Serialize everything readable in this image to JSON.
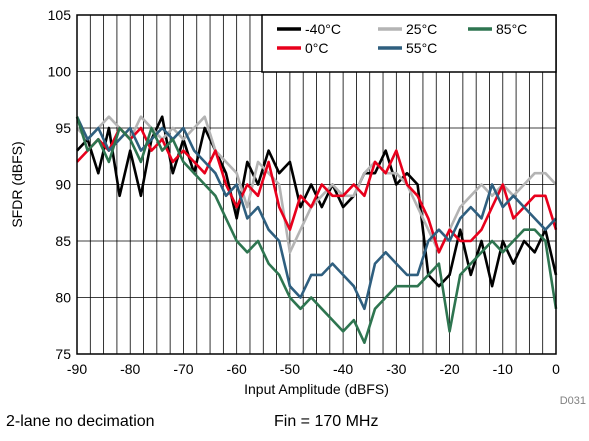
{
  "chart_data": {
    "type": "line",
    "xlabel": "Input Amplitude (dBFS)",
    "ylabel": "SFDR (dBFS)",
    "xlim": [
      -90,
      0
    ],
    "ylim": [
      75,
      105
    ],
    "xticks": [
      "-90",
      "-80",
      "-70",
      "-60",
      "-50",
      "-40",
      "-30",
      "-20",
      "-10",
      "0"
    ],
    "yticks": [
      "75",
      "80",
      "85",
      "90",
      "95",
      "100",
      "105"
    ],
    "grid": true,
    "legend_position": "top-right",
    "series": [
      {
        "name": "-40°C",
        "color": "#000000",
        "x": [
          -90,
          -88,
          -86,
          -84,
          -82,
          -80,
          -78,
          -76,
          -74,
          -72,
          -70,
          -68,
          -66,
          -64,
          -62,
          -60,
          -58,
          -56,
          -54,
          -52,
          -50,
          -48,
          -46,
          -44,
          -42,
          -40,
          -38,
          -36,
          -34,
          -32,
          -30,
          -28,
          -26,
          -24,
          -22,
          -20,
          -18,
          -16,
          -14,
          -12,
          -10,
          -8,
          -6,
          -4,
          -2,
          0
        ],
        "y": [
          93,
          94,
          91,
          95,
          89,
          93,
          89,
          94,
          96,
          91,
          94,
          91,
          95,
          93,
          91,
          87,
          92,
          90,
          93,
          91,
          92,
          88,
          90,
          88,
          90,
          88,
          89,
          91,
          91,
          93,
          90,
          91,
          90,
          82,
          81,
          82,
          86,
          82,
          85,
          81,
          85,
          83,
          85,
          84,
          86,
          82
        ]
      },
      {
        "name": "25°C",
        "color": "#b4b4b4",
        "x": [
          -90,
          -88,
          -86,
          -84,
          -82,
          -80,
          -78,
          -76,
          -74,
          -72,
          -70,
          -68,
          -66,
          -64,
          -62,
          -60,
          -58,
          -56,
          -54,
          -52,
          -50,
          -48,
          -46,
          -44,
          -42,
          -40,
          -38,
          -36,
          -34,
          -32,
          -30,
          -28,
          -26,
          -24,
          -22,
          -20,
          -18,
          -16,
          -14,
          -12,
          -10,
          -8,
          -6,
          -4,
          -2,
          0
        ],
        "y": [
          95,
          94,
          95,
          96,
          95,
          94,
          96,
          95,
          94,
          95,
          94,
          95,
          96,
          93,
          92,
          91,
          88,
          92,
          91,
          90,
          84,
          86,
          88,
          89,
          90,
          89,
          89,
          91,
          92,
          91,
          91,
          90,
          88,
          86,
          84,
          86,
          88,
          89,
          90,
          89,
          90,
          89,
          90,
          91,
          91,
          90
        ]
      },
      {
        "name": "0°C",
        "color": "#e8001c",
        "x": [
          -90,
          -88,
          -86,
          -84,
          -82,
          -80,
          -78,
          -76,
          -74,
          -72,
          -70,
          -68,
          -66,
          -64,
          -62,
          -60,
          -58,
          -56,
          -54,
          -52,
          -50,
          -48,
          -46,
          -44,
          -42,
          -40,
          -38,
          -36,
          -34,
          -32,
          -30,
          -28,
          -26,
          -24,
          -22,
          -20,
          -18,
          -16,
          -14,
          -12,
          -10,
          -8,
          -6,
          -4,
          -2,
          0
        ],
        "y": [
          92,
          93,
          94,
          93,
          95,
          94,
          95,
          93,
          94,
          92,
          93,
          92,
          91,
          93,
          90,
          88,
          90,
          89,
          92,
          88,
          86,
          89,
          88,
          90,
          89,
          89,
          90,
          89,
          92,
          91,
          93,
          90,
          89,
          87,
          84,
          86,
          85,
          85,
          86,
          88,
          90,
          87,
          88,
          89,
          89,
          86
        ]
      },
      {
        "name": "55°C",
        "color": "#2f5f7f",
        "x": [
          -90,
          -88,
          -86,
          -84,
          -82,
          -80,
          -78,
          -76,
          -74,
          -72,
          -70,
          -68,
          -66,
          -64,
          -62,
          -60,
          -58,
          -56,
          -54,
          -52,
          -50,
          -48,
          -46,
          -44,
          -42,
          -40,
          -38,
          -36,
          -34,
          -32,
          -30,
          -28,
          -26,
          -24,
          -22,
          -20,
          -18,
          -16,
          -14,
          -12,
          -10,
          -8,
          -6,
          -4,
          -2,
          0
        ],
        "y": [
          96,
          94,
          95,
          93,
          94,
          95,
          93,
          94,
          95,
          94,
          95,
          93,
          92,
          91,
          89,
          90,
          87,
          88,
          86,
          85,
          81,
          80,
          82,
          82,
          83,
          82,
          81,
          79,
          83,
          84,
          83,
          82,
          82,
          85,
          86,
          85,
          87,
          88,
          87,
          90,
          88,
          89,
          88,
          87,
          86,
          87
        ]
      },
      {
        "name": "85°C",
        "color": "#2e7550",
        "x": [
          -90,
          -88,
          -86,
          -84,
          -82,
          -80,
          -78,
          -76,
          -74,
          -72,
          -70,
          -68,
          -66,
          -64,
          -62,
          -60,
          -58,
          -56,
          -54,
          -52,
          -50,
          -48,
          -46,
          -44,
          -42,
          -40,
          -38,
          -36,
          -34,
          -32,
          -30,
          -28,
          -26,
          -24,
          -22,
          -20,
          -18,
          -16,
          -14,
          -12,
          -10,
          -8,
          -6,
          -4,
          -2,
          0
        ],
        "y": [
          96,
          93,
          94,
          92,
          95,
          94,
          92,
          95,
          93,
          94,
          92,
          91,
          90,
          89,
          87,
          85,
          84,
          85,
          83,
          82,
          80,
          79,
          80,
          79,
          78,
          77,
          78,
          76,
          79,
          80,
          81,
          81,
          81,
          82,
          83,
          77,
          82,
          83,
          84,
          85,
          84,
          85,
          86,
          86,
          85,
          79
        ]
      }
    ]
  },
  "caption": {
    "left": "2-lane no decimation",
    "right": "Fin = 170 MHz"
  },
  "figure_code": "D031"
}
